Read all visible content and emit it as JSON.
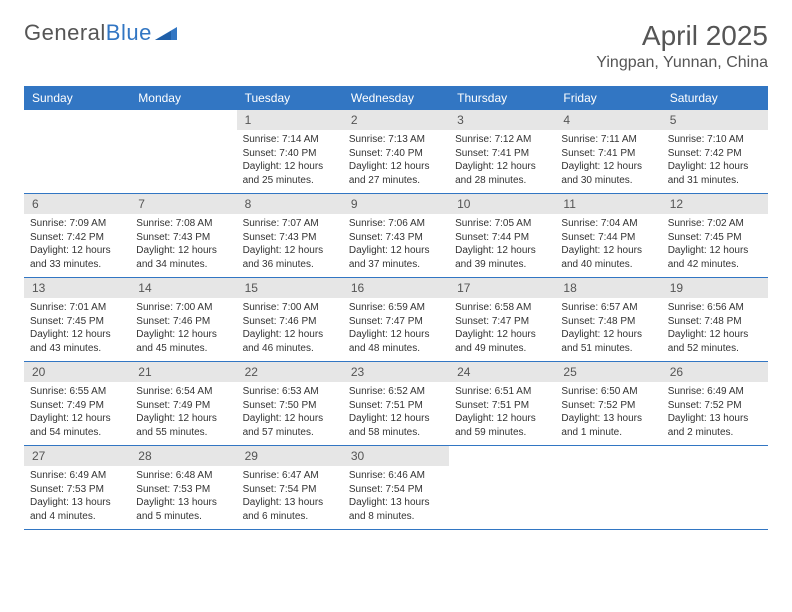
{
  "brand": {
    "part1": "General",
    "part2": "Blue"
  },
  "title": "April 2025",
  "location": "Yingpan, Yunnan, China",
  "colors": {
    "header_bg": "#3276c3",
    "header_text": "#ffffff",
    "daynum_bg": "#e6e6e6",
    "text": "#333333",
    "title_text": "#555555",
    "border": "#3276c3",
    "background": "#ffffff"
  },
  "layout": {
    "columns": 7,
    "rows": 5,
    "cell_font_size": 10,
    "header_font_size": 12
  },
  "weekdays": [
    "Sunday",
    "Monday",
    "Tuesday",
    "Wednesday",
    "Thursday",
    "Friday",
    "Saturday"
  ],
  "weeks": [
    [
      {
        "n": "",
        "sunrise": "",
        "sunset": "",
        "daylight": ""
      },
      {
        "n": "",
        "sunrise": "",
        "sunset": "",
        "daylight": ""
      },
      {
        "n": "1",
        "sunrise": "Sunrise: 7:14 AM",
        "sunset": "Sunset: 7:40 PM",
        "daylight": "Daylight: 12 hours and 25 minutes."
      },
      {
        "n": "2",
        "sunrise": "Sunrise: 7:13 AM",
        "sunset": "Sunset: 7:40 PM",
        "daylight": "Daylight: 12 hours and 27 minutes."
      },
      {
        "n": "3",
        "sunrise": "Sunrise: 7:12 AM",
        "sunset": "Sunset: 7:41 PM",
        "daylight": "Daylight: 12 hours and 28 minutes."
      },
      {
        "n": "4",
        "sunrise": "Sunrise: 7:11 AM",
        "sunset": "Sunset: 7:41 PM",
        "daylight": "Daylight: 12 hours and 30 minutes."
      },
      {
        "n": "5",
        "sunrise": "Sunrise: 7:10 AM",
        "sunset": "Sunset: 7:42 PM",
        "daylight": "Daylight: 12 hours and 31 minutes."
      }
    ],
    [
      {
        "n": "6",
        "sunrise": "Sunrise: 7:09 AM",
        "sunset": "Sunset: 7:42 PM",
        "daylight": "Daylight: 12 hours and 33 minutes."
      },
      {
        "n": "7",
        "sunrise": "Sunrise: 7:08 AM",
        "sunset": "Sunset: 7:43 PM",
        "daylight": "Daylight: 12 hours and 34 minutes."
      },
      {
        "n": "8",
        "sunrise": "Sunrise: 7:07 AM",
        "sunset": "Sunset: 7:43 PM",
        "daylight": "Daylight: 12 hours and 36 minutes."
      },
      {
        "n": "9",
        "sunrise": "Sunrise: 7:06 AM",
        "sunset": "Sunset: 7:43 PM",
        "daylight": "Daylight: 12 hours and 37 minutes."
      },
      {
        "n": "10",
        "sunrise": "Sunrise: 7:05 AM",
        "sunset": "Sunset: 7:44 PM",
        "daylight": "Daylight: 12 hours and 39 minutes."
      },
      {
        "n": "11",
        "sunrise": "Sunrise: 7:04 AM",
        "sunset": "Sunset: 7:44 PM",
        "daylight": "Daylight: 12 hours and 40 minutes."
      },
      {
        "n": "12",
        "sunrise": "Sunrise: 7:02 AM",
        "sunset": "Sunset: 7:45 PM",
        "daylight": "Daylight: 12 hours and 42 minutes."
      }
    ],
    [
      {
        "n": "13",
        "sunrise": "Sunrise: 7:01 AM",
        "sunset": "Sunset: 7:45 PM",
        "daylight": "Daylight: 12 hours and 43 minutes."
      },
      {
        "n": "14",
        "sunrise": "Sunrise: 7:00 AM",
        "sunset": "Sunset: 7:46 PM",
        "daylight": "Daylight: 12 hours and 45 minutes."
      },
      {
        "n": "15",
        "sunrise": "Sunrise: 7:00 AM",
        "sunset": "Sunset: 7:46 PM",
        "daylight": "Daylight: 12 hours and 46 minutes."
      },
      {
        "n": "16",
        "sunrise": "Sunrise: 6:59 AM",
        "sunset": "Sunset: 7:47 PM",
        "daylight": "Daylight: 12 hours and 48 minutes."
      },
      {
        "n": "17",
        "sunrise": "Sunrise: 6:58 AM",
        "sunset": "Sunset: 7:47 PM",
        "daylight": "Daylight: 12 hours and 49 minutes."
      },
      {
        "n": "18",
        "sunrise": "Sunrise: 6:57 AM",
        "sunset": "Sunset: 7:48 PM",
        "daylight": "Daylight: 12 hours and 51 minutes."
      },
      {
        "n": "19",
        "sunrise": "Sunrise: 6:56 AM",
        "sunset": "Sunset: 7:48 PM",
        "daylight": "Daylight: 12 hours and 52 minutes."
      }
    ],
    [
      {
        "n": "20",
        "sunrise": "Sunrise: 6:55 AM",
        "sunset": "Sunset: 7:49 PM",
        "daylight": "Daylight: 12 hours and 54 minutes."
      },
      {
        "n": "21",
        "sunrise": "Sunrise: 6:54 AM",
        "sunset": "Sunset: 7:49 PM",
        "daylight": "Daylight: 12 hours and 55 minutes."
      },
      {
        "n": "22",
        "sunrise": "Sunrise: 6:53 AM",
        "sunset": "Sunset: 7:50 PM",
        "daylight": "Daylight: 12 hours and 57 minutes."
      },
      {
        "n": "23",
        "sunrise": "Sunrise: 6:52 AM",
        "sunset": "Sunset: 7:51 PM",
        "daylight": "Daylight: 12 hours and 58 minutes."
      },
      {
        "n": "24",
        "sunrise": "Sunrise: 6:51 AM",
        "sunset": "Sunset: 7:51 PM",
        "daylight": "Daylight: 12 hours and 59 minutes."
      },
      {
        "n": "25",
        "sunrise": "Sunrise: 6:50 AM",
        "sunset": "Sunset: 7:52 PM",
        "daylight": "Daylight: 13 hours and 1 minute."
      },
      {
        "n": "26",
        "sunrise": "Sunrise: 6:49 AM",
        "sunset": "Sunset: 7:52 PM",
        "daylight": "Daylight: 13 hours and 2 minutes."
      }
    ],
    [
      {
        "n": "27",
        "sunrise": "Sunrise: 6:49 AM",
        "sunset": "Sunset: 7:53 PM",
        "daylight": "Daylight: 13 hours and 4 minutes."
      },
      {
        "n": "28",
        "sunrise": "Sunrise: 6:48 AM",
        "sunset": "Sunset: 7:53 PM",
        "daylight": "Daylight: 13 hours and 5 minutes."
      },
      {
        "n": "29",
        "sunrise": "Sunrise: 6:47 AM",
        "sunset": "Sunset: 7:54 PM",
        "daylight": "Daylight: 13 hours and 6 minutes."
      },
      {
        "n": "30",
        "sunrise": "Sunrise: 6:46 AM",
        "sunset": "Sunset: 7:54 PM",
        "daylight": "Daylight: 13 hours and 8 minutes."
      },
      {
        "n": "",
        "sunrise": "",
        "sunset": "",
        "daylight": ""
      },
      {
        "n": "",
        "sunrise": "",
        "sunset": "",
        "daylight": ""
      },
      {
        "n": "",
        "sunrise": "",
        "sunset": "",
        "daylight": ""
      }
    ]
  ]
}
